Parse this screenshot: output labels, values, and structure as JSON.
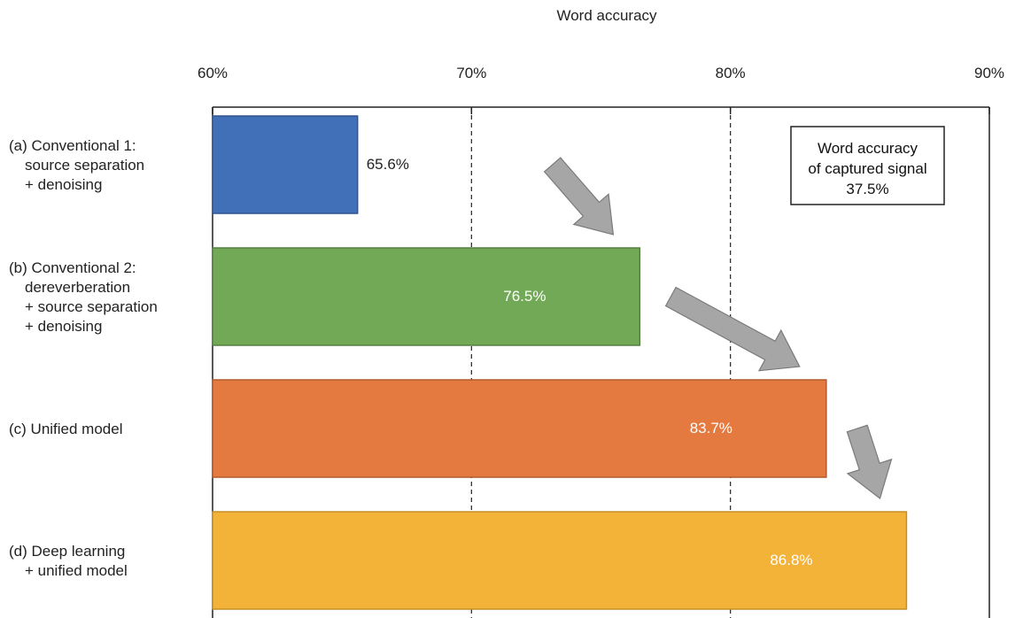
{
  "chart_data": {
    "type": "bar",
    "orientation": "horizontal",
    "xlabel": "Word accuracy",
    "xlim": [
      60,
      90
    ],
    "xticks": [
      60,
      70,
      80,
      90
    ],
    "xtick_labels": [
      "60%",
      "70%",
      "80%",
      "90%"
    ],
    "grid": "vertical dashed",
    "categories": [
      [
        "(a) Conventional 1:",
        "source separation",
        "+ denoising"
      ],
      [
        "(b) Conventional 2:",
        "dereverberation",
        "+ source separation",
        "+ denoising"
      ],
      [
        "(c) Unified model"
      ],
      [
        "(d) Deep learning",
        "+ unified model"
      ]
    ],
    "values": [
      65.6,
      76.5,
      83.7,
      86.8
    ],
    "value_labels": [
      "65.6%",
      "76.5%",
      "83.7%",
      "86.8%"
    ],
    "colors": [
      "#4270b8",
      "#72a957",
      "#e57a40",
      "#f3b338"
    ],
    "annotation": {
      "lines": [
        "Word accuracy",
        "of captured signal",
        "37.5%"
      ],
      "value": 37.5,
      "placement": "top-right"
    },
    "arrows": "gray arrows pointing from each bar to the next"
  }
}
